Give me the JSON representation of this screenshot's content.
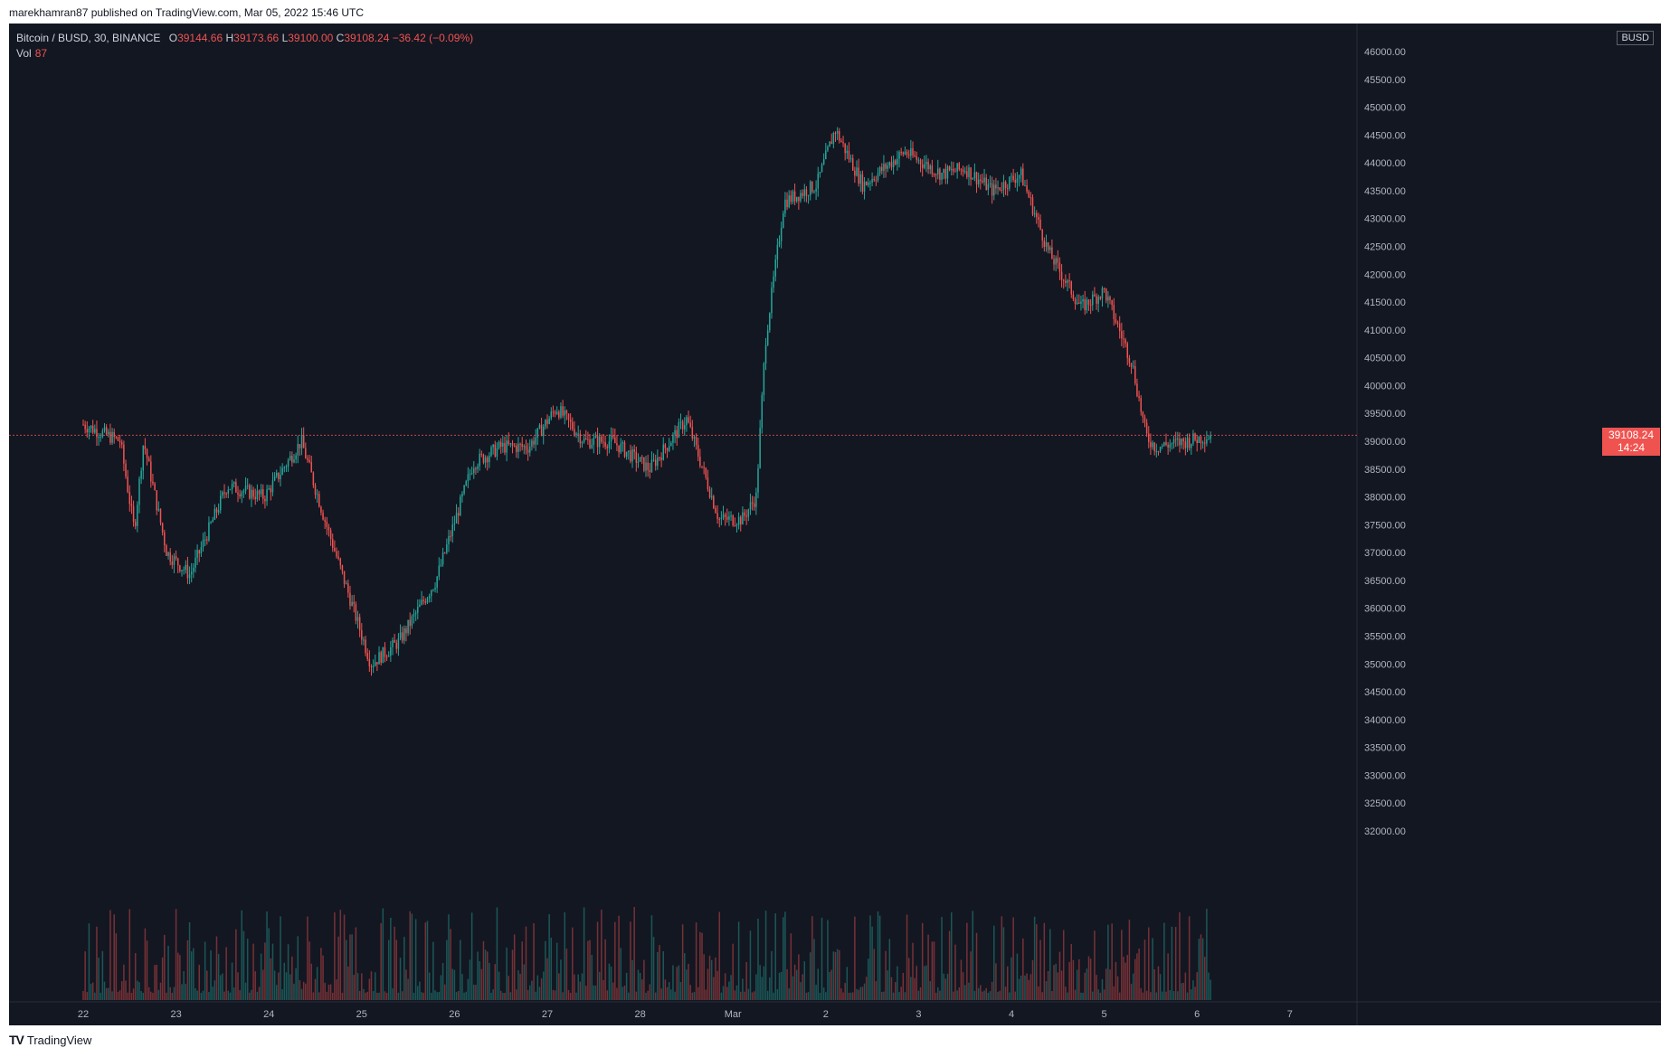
{
  "caption": "marekhamran87 published on TradingView.com, Mar 05, 2022 15:46 UTC",
  "legend": {
    "symbol": "Bitcoin / BUSD, 30, BINANCE",
    "open_k": "O",
    "open_v": "39144.66",
    "high_k": "H",
    "high_v": "39173.66",
    "low_k": "L",
    "low_v": "39100.00",
    "close_k": "C",
    "close_v": "39108.24",
    "change": "−36.42 (−0.09%)",
    "vol_label": "Vol",
    "vol_value": "87"
  },
  "currency_label": "BUSD",
  "last_price": {
    "value": "39108.24",
    "countdown": "14:24"
  },
  "footer": {
    "logo": "TV",
    "brand": "TradingView"
  },
  "colors": {
    "up": "#26a69a",
    "down": "#ef5350",
    "background": "#131722",
    "grid": "#1e222d",
    "axis_text": "#b2b5be"
  },
  "chart_data": {
    "type": "candlestick",
    "timeframe": "30",
    "x_tick_labels": [
      "22",
      "23",
      "24",
      "25",
      "26",
      "27",
      "28",
      "Mar",
      "2",
      "3",
      "4",
      "5",
      "6",
      "7"
    ],
    "y_tick_labels": [
      "32000.00",
      "32500.00",
      "33000.00",
      "33500.00",
      "34000.00",
      "34500.00",
      "35000.00",
      "35500.00",
      "36000.00",
      "36500.00",
      "37000.00",
      "37500.00",
      "38000.00",
      "38500.00",
      "39000.00",
      "39500.00",
      "40000.00",
      "40500.00",
      "41000.00",
      "41500.00",
      "42000.00",
      "42500.00",
      "43000.00",
      "43500.00",
      "44000.00",
      "44500.00",
      "45000.00",
      "45500.00",
      "46000.00"
    ],
    "y_range": [
      31600,
      46500
    ],
    "last_close": 39108.24,
    "path_anchors": [
      {
        "day": 0.0,
        "price": 39300
      },
      {
        "day": 0.4,
        "price": 39000
      },
      {
        "day": 0.55,
        "price": 37400
      },
      {
        "day": 0.65,
        "price": 39000
      },
      {
        "day": 0.9,
        "price": 37000
      },
      {
        "day": 1.15,
        "price": 36600
      },
      {
        "day": 1.55,
        "price": 38200
      },
      {
        "day": 1.95,
        "price": 38000
      },
      {
        "day": 2.35,
        "price": 39000
      },
      {
        "day": 2.6,
        "price": 37600
      },
      {
        "day": 3.1,
        "price": 35000
      },
      {
        "day": 3.4,
        "price": 35400
      },
      {
        "day": 3.8,
        "price": 36500
      },
      {
        "day": 4.2,
        "price": 38600
      },
      {
        "day": 4.5,
        "price": 38900
      },
      {
        "day": 4.8,
        "price": 38900
      },
      {
        "day": 5.1,
        "price": 39600
      },
      {
        "day": 5.4,
        "price": 39000
      },
      {
        "day": 5.7,
        "price": 39000
      },
      {
        "day": 6.1,
        "price": 38500
      },
      {
        "day": 6.5,
        "price": 39400
      },
      {
        "day": 6.85,
        "price": 37600
      },
      {
        "day": 7.1,
        "price": 37600
      },
      {
        "day": 7.25,
        "price": 38000
      },
      {
        "day": 7.35,
        "price": 40800
      },
      {
        "day": 7.55,
        "price": 43300
      },
      {
        "day": 7.9,
        "price": 43600
      },
      {
        "day": 8.1,
        "price": 44600
      },
      {
        "day": 8.4,
        "price": 43600
      },
      {
        "day": 8.85,
        "price": 44200
      },
      {
        "day": 9.25,
        "price": 43800
      },
      {
        "day": 9.5,
        "price": 43900
      },
      {
        "day": 9.8,
        "price": 43500
      },
      {
        "day": 10.1,
        "price": 43800
      },
      {
        "day": 10.4,
        "price": 42400
      },
      {
        "day": 10.75,
        "price": 41400
      },
      {
        "day": 11.0,
        "price": 41700
      },
      {
        "day": 11.3,
        "price": 40400
      },
      {
        "day": 11.45,
        "price": 39100
      },
      {
        "day": 11.55,
        "price": 38900
      },
      {
        "day": 11.9,
        "price": 39000
      },
      {
        "day": 12.15,
        "price": 39108
      }
    ]
  }
}
